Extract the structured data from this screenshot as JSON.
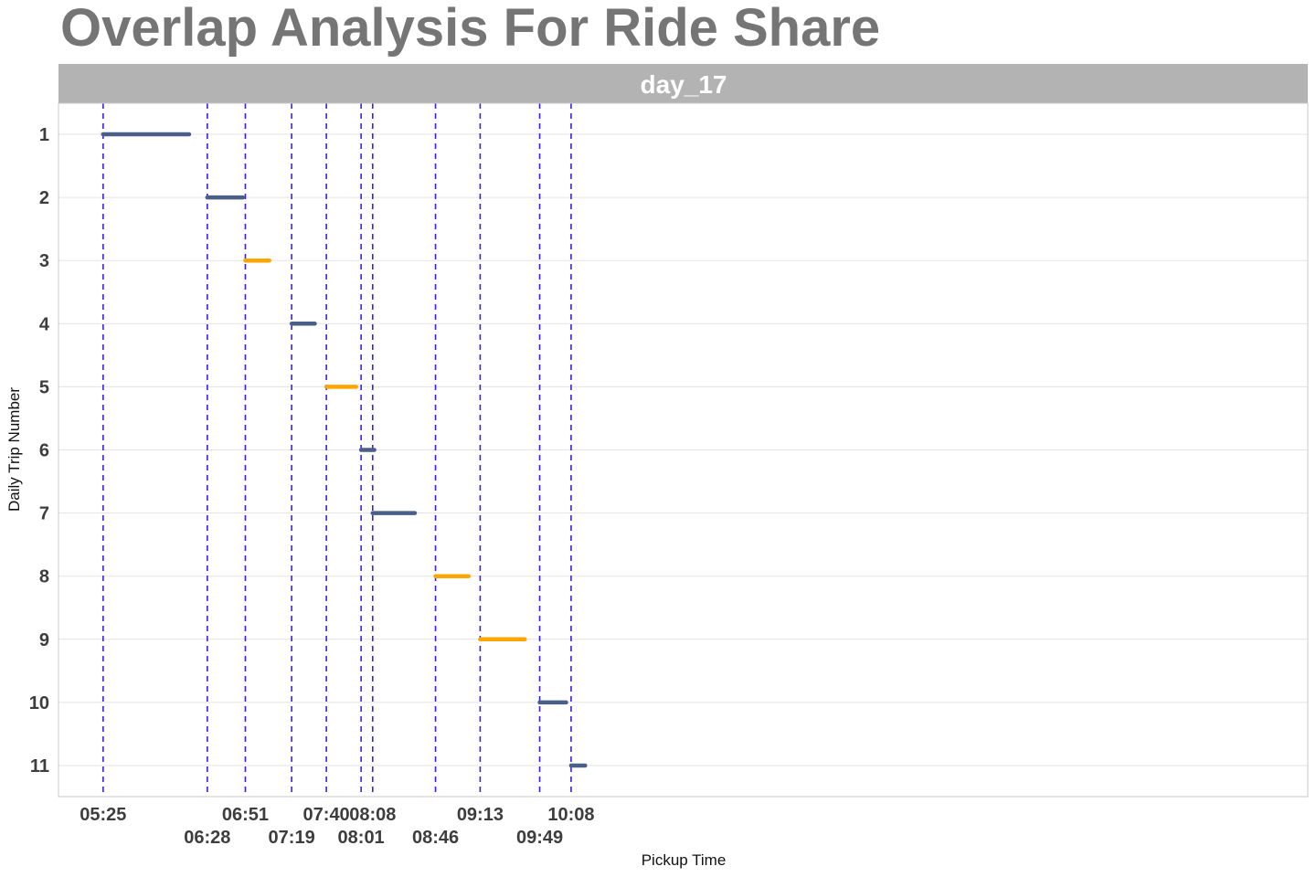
{
  "chart_data": {
    "type": "gantt",
    "title": "Overlap Analysis For Ride Share",
    "facet_label": "day_17",
    "xlabel": "Pickup Time",
    "ylabel": "Daily Trip Number",
    "y_categories": [
      "1",
      "2",
      "3",
      "4",
      "5",
      "6",
      "7",
      "8",
      "9",
      "10",
      "11"
    ],
    "x_domain_minutes": [
      298,
      1053.5
    ],
    "colors": {
      "no_overlap": "#4a5e8a",
      "overlap": "#ffa500",
      "pickup_line": "#3b1fe8",
      "strip": "#b3b3b3",
      "grid": "#e3e3e3"
    },
    "pickup_ticks": [
      {
        "label": "05:25",
        "minutes": 325,
        "row": 0
      },
      {
        "label": "06:28",
        "minutes": 388,
        "row": 1
      },
      {
        "label": "06:51",
        "minutes": 411,
        "row": 0
      },
      {
        "label": "07:19",
        "minutes": 439,
        "row": 1
      },
      {
        "label": "07:40",
        "minutes": 460,
        "row": 0
      },
      {
        "label": "08:01",
        "minutes": 481,
        "row": 1
      },
      {
        "label": "08:08",
        "minutes": 488,
        "row": 0
      },
      {
        "label": "08:46",
        "minutes": 526,
        "row": 1
      },
      {
        "label": "09:13",
        "minutes": 553,
        "row": 0
      },
      {
        "label": "09:49",
        "minutes": 589,
        "row": 1
      },
      {
        "label": "10:08",
        "minutes": 608,
        "row": 0
      }
    ],
    "trips": [
      {
        "trip": 1,
        "start": 325,
        "end": 377,
        "overlap": false
      },
      {
        "trip": 2,
        "start": 388,
        "end": 409.5,
        "overlap": false
      },
      {
        "trip": 3,
        "start": 411,
        "end": 425.5,
        "overlap": true
      },
      {
        "trip": 4,
        "start": 439,
        "end": 453,
        "overlap": false
      },
      {
        "trip": 5,
        "start": 460,
        "end": 478,
        "overlap": true
      },
      {
        "trip": 6,
        "start": 481,
        "end": 489,
        "overlap": false
      },
      {
        "trip": 7,
        "start": 488,
        "end": 513.5,
        "overlap": false
      },
      {
        "trip": 8,
        "start": 526,
        "end": 546,
        "overlap": true
      },
      {
        "trip": 9,
        "start": 553,
        "end": 580,
        "overlap": true
      },
      {
        "trip": 10,
        "start": 589,
        "end": 605,
        "overlap": false
      },
      {
        "trip": 11,
        "start": 608,
        "end": 616.5,
        "overlap": false
      }
    ]
  }
}
